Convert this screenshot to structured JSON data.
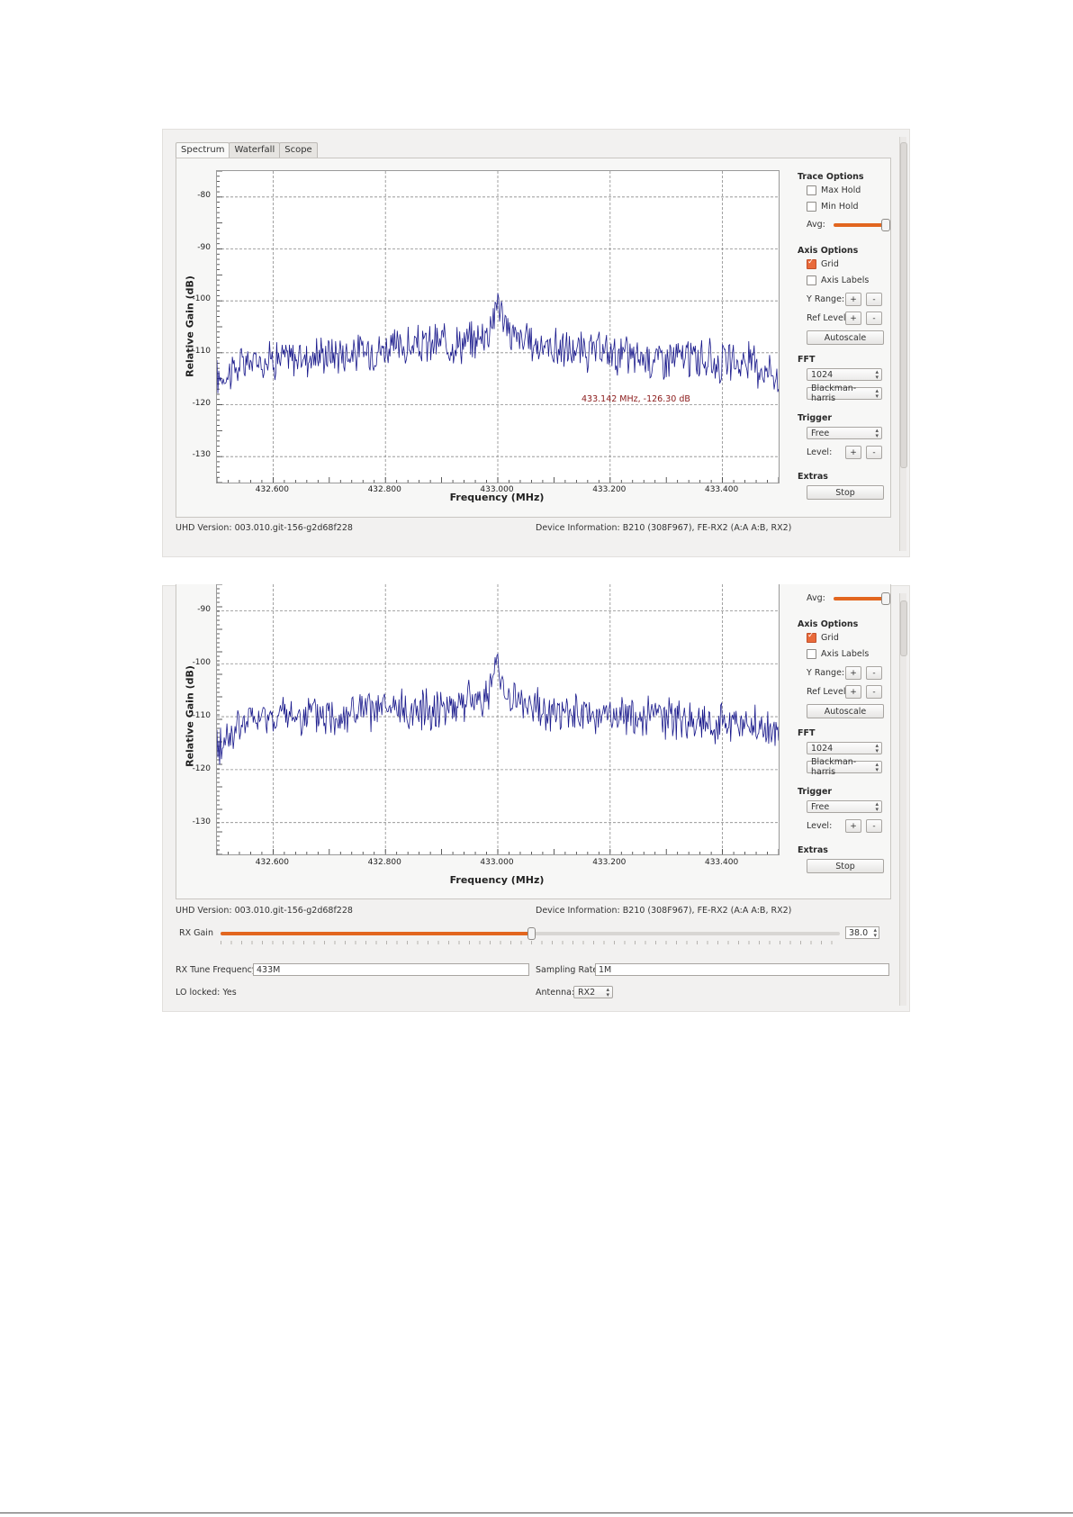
{
  "tabs": [
    "Spectrum",
    "Waterfall",
    "Scope"
  ],
  "side": {
    "trace_title": "Trace Options",
    "max_hold": "Max Hold",
    "min_hold": "Min Hold",
    "avg": "Avg:",
    "avg_level": 1.0,
    "axis_title": "Axis Options",
    "grid": "Grid",
    "grid_checked": true,
    "axis_labels": "Axis Labels",
    "axis_labels_checked": false,
    "y_range": "Y Range:",
    "ref_level": "Ref Level:",
    "plus": "+",
    "minus": "-",
    "autoscale": "Autoscale",
    "fft_title": "FFT",
    "fft_size": "1024",
    "fft_window": "Blackman-harris",
    "trigger_title": "Trigger",
    "trigger_mode": "Free",
    "level": "Level:",
    "extras_title": "Extras",
    "stop": "Stop"
  },
  "info": {
    "uhd": "UHD Version: 003.010.git-156-g2d68f228",
    "device": "Device Information: B210 (308F967), FE-RX2 (A:A A:B, RX2)"
  },
  "controls": {
    "rx_gain_label": "RX Gain",
    "rx_gain_value": "38.0",
    "rx_gain_fraction": 0.5,
    "rx_tune_label": "RX Tune Frequency:",
    "rx_tune_value": "433M",
    "sampling_label": "Sampling Rate:",
    "sampling_value": "1M",
    "lo_locked": "LO locked: Yes",
    "antenna_label": "Antenna:",
    "antenna_value": "RX2"
  },
  "chart_data": [
    {
      "type": "line",
      "title": "",
      "xlabel": "Frequency (MHz)",
      "ylabel": "Relative Gain (dB)",
      "xlim": [
        432.5,
        433.5
      ],
      "ylim": [
        -135,
        -75
      ],
      "x_ticks": [
        "432.600",
        "432.800",
        "433.000",
        "433.200",
        "433.400"
      ],
      "y_ticks": [
        "-80",
        "-90",
        "-100",
        "-110",
        "-120",
        "-130"
      ],
      "grid": true,
      "color": "#1a1a8c",
      "marker_text": "433.142 MHz, -126.30 dB",
      "series": [
        {
          "x": [
            432.5,
            432.55,
            432.6,
            432.65,
            432.7,
            432.75,
            432.8,
            432.85,
            432.9,
            432.95,
            432.98,
            432.99,
            433.0,
            433.01,
            433.02,
            433.05,
            433.1,
            433.15,
            433.2,
            433.25,
            433.3,
            433.35,
            433.4,
            433.45,
            433.5
          ],
          "values": [
            -115,
            -112,
            -111,
            -111,
            -110,
            -110,
            -109,
            -109,
            -108,
            -108,
            -106,
            -104,
            -99,
            -104,
            -106,
            -108,
            -109,
            -110,
            -110,
            -111,
            -111,
            -111,
            -112,
            -112,
            -114
          ]
        }
      ]
    },
    {
      "type": "line",
      "title": "",
      "xlabel": "Frequency (MHz)",
      "ylabel": "Relative Gain (dB)",
      "xlim": [
        432.5,
        433.5
      ],
      "ylim": [
        -136,
        -85
      ],
      "x_ticks": [
        "432.600",
        "432.800",
        "433.000",
        "433.200",
        "433.400"
      ],
      "y_ticks": [
        "-90",
        "-100",
        "-110",
        "-120",
        "-130"
      ],
      "grid": true,
      "color": "#1a1a8c",
      "series": [
        {
          "x": [
            432.5,
            432.55,
            432.6,
            432.65,
            432.7,
            432.75,
            432.8,
            432.85,
            432.9,
            432.95,
            432.98,
            432.99,
            433.0,
            433.01,
            433.02,
            433.05,
            433.1,
            433.15,
            433.2,
            433.25,
            433.3,
            433.35,
            433.4,
            433.45,
            433.5
          ],
          "values": [
            -116,
            -111,
            -110,
            -110,
            -110,
            -109,
            -109,
            -109,
            -108,
            -107,
            -106,
            -104,
            -100,
            -104,
            -106,
            -108,
            -109,
            -110,
            -110,
            -110,
            -110,
            -111,
            -111,
            -112,
            -113
          ]
        }
      ]
    }
  ]
}
